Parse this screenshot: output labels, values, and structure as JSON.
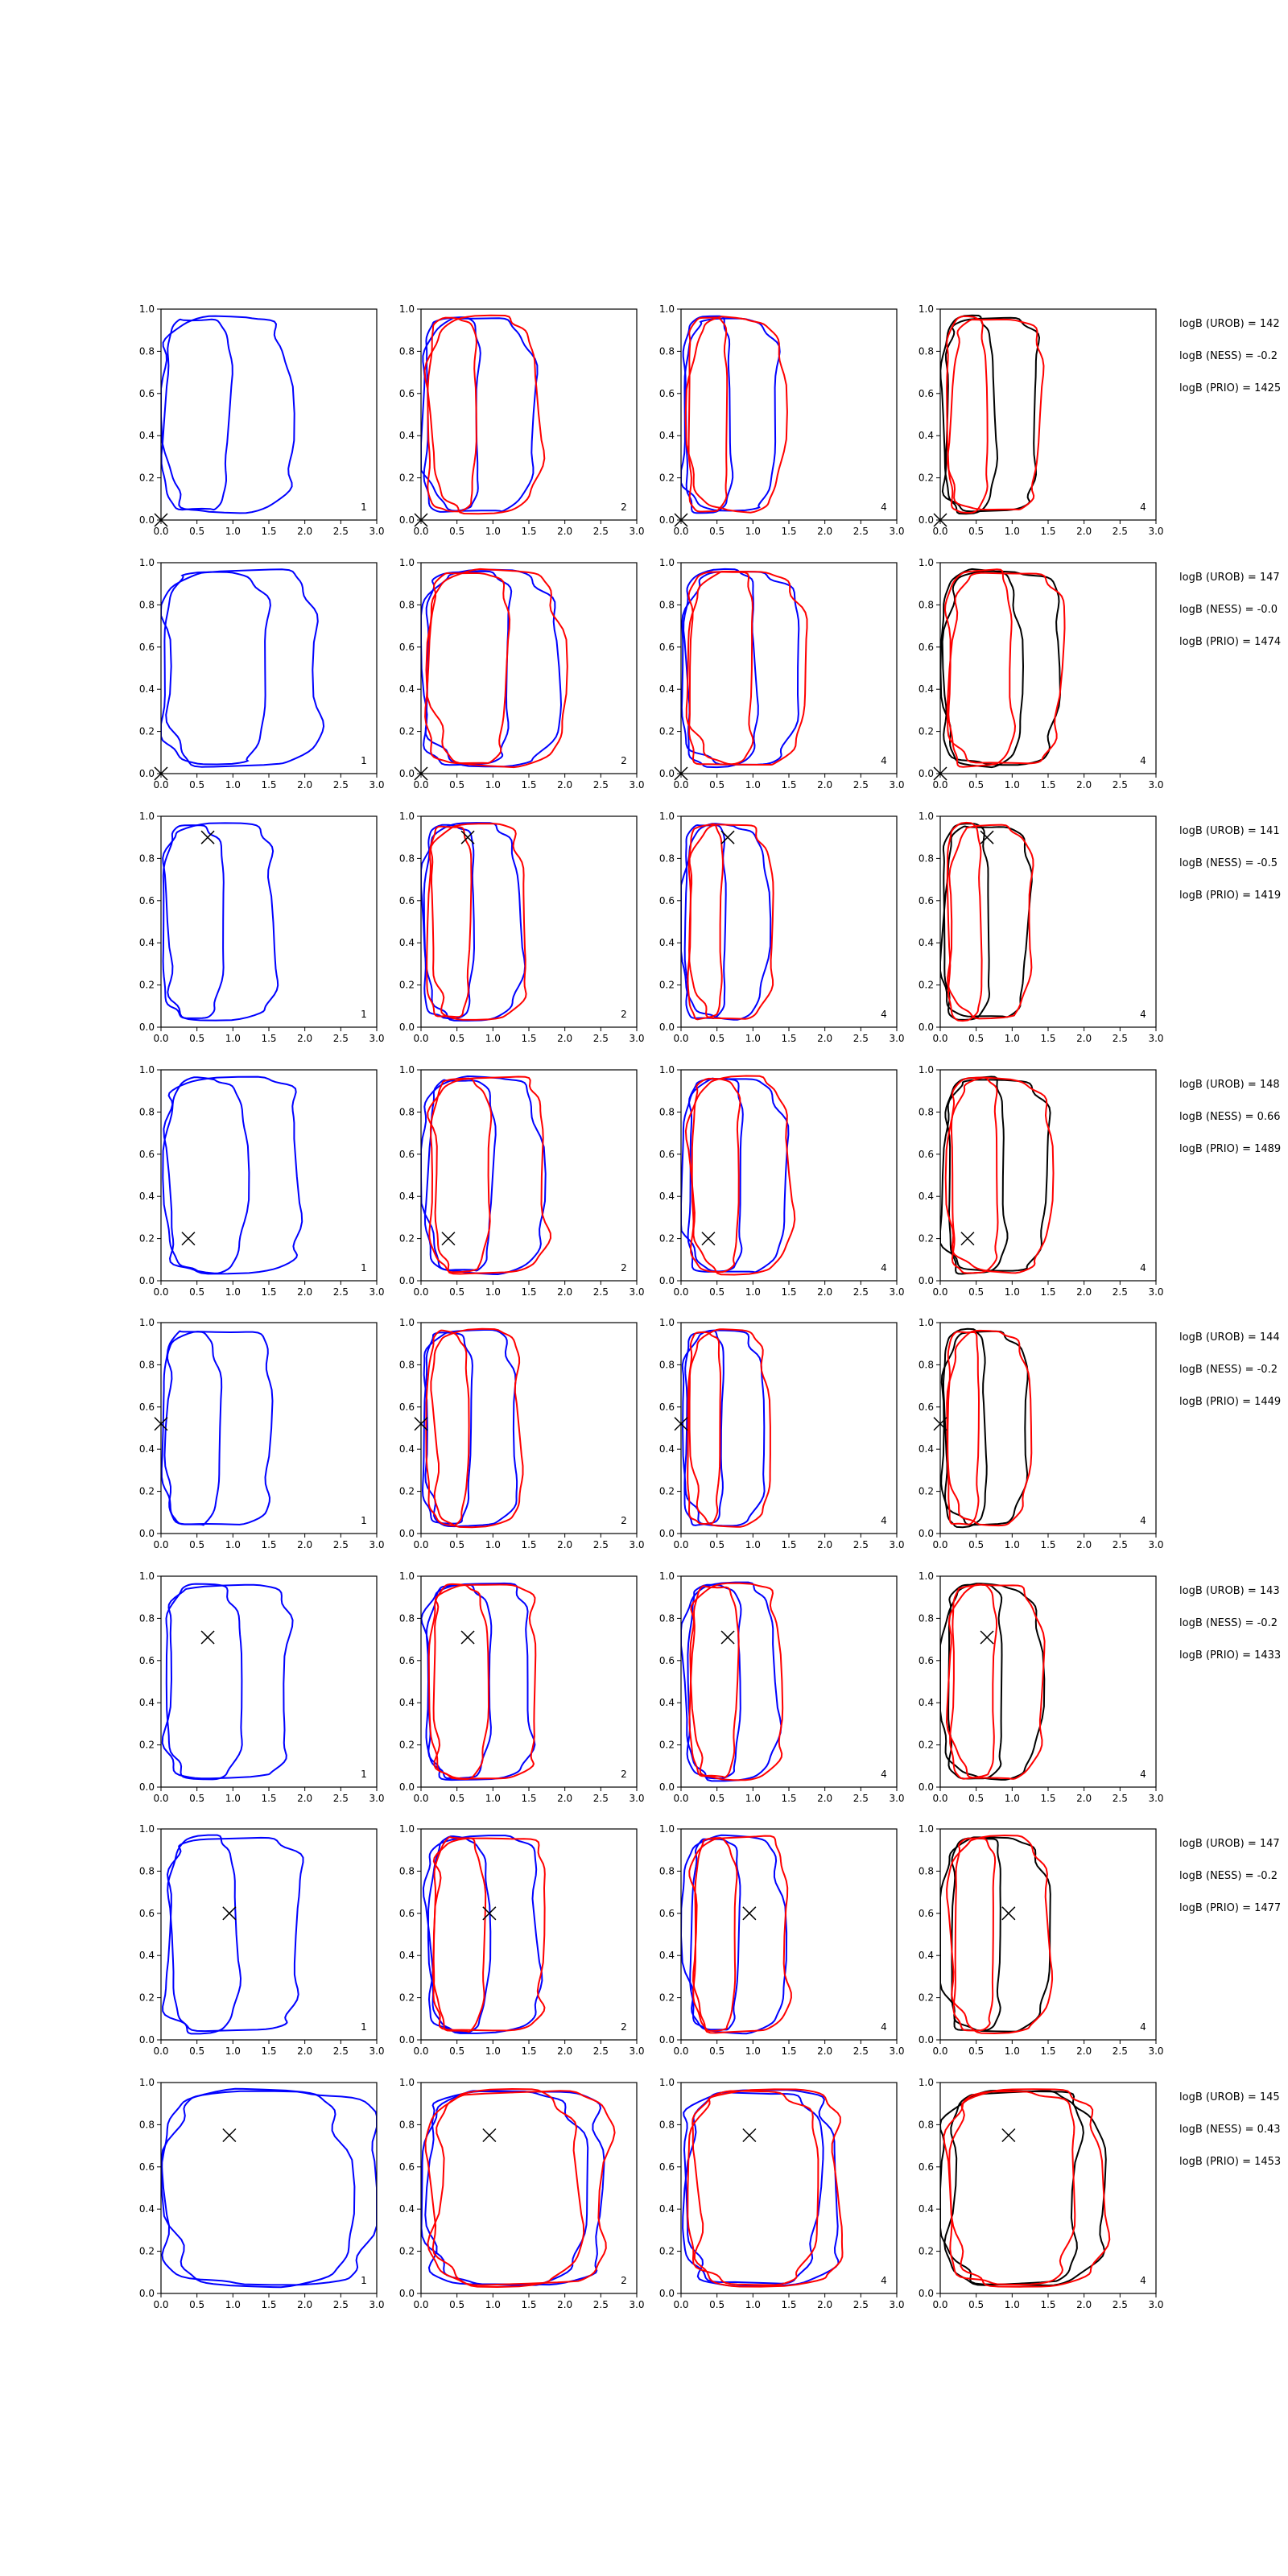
{
  "chart_data": {
    "type": "contour",
    "rows": 8,
    "cols": 4,
    "xlim": [
      0,
      3
    ],
    "ylim": [
      0,
      1
    ],
    "xticks": [
      "0.0",
      "0.5",
      "1.0",
      "1.5",
      "2.0",
      "2.5",
      "3.0"
    ],
    "yticks": [
      "0.0",
      "0.2",
      "0.4",
      "0.6",
      "0.8",
      "1.0"
    ],
    "panel_labels": [
      "1",
      "2",
      "4",
      "4"
    ],
    "colors": {
      "blue": "#0000ff",
      "red": "#ff0000",
      "black": "#000000"
    },
    "series_by_column": [
      [
        "blue"
      ],
      [
        "blue",
        "red"
      ],
      [
        "blue",
        "red"
      ],
      [
        "black",
        "red"
      ]
    ],
    "rows_data": [
      {
        "marker": [
          0.0,
          0.0
        ],
        "text": [
          "logB (UROB) = 142",
          "logB (NESS) = -0.2",
          "logB (PRIO) = 1425"
        ],
        "contours": {
          "blue": [
            [
              0.05,
              0.95,
              0.2,
              0.0
            ],
            [
              0.05,
              1.8,
              0.2,
              0.0
            ]
          ]
        }
      },
      {
        "marker": [
          0.0,
          0.0
        ],
        "text": [
          "logB (UROB) = 147",
          "logB (NESS) = -0.0",
          "logB (PRIO) = 1474"
        ],
        "contours": {
          "blue": [
            [
              0.05,
              1.45,
              0.1,
              0.0
            ],
            [
              0.05,
              2.2,
              0.0,
              0.0
            ]
          ]
        }
      },
      {
        "marker": [
          0.65,
          0.9
        ],
        "text": [
          "logB (UROB) = 141",
          "logB (NESS) = -0.5",
          "logB (PRIO) = 1419"
        ],
        "contours": {
          "blue": [
            [
              0.05,
              0.85,
              0.15,
              0.0
            ],
            [
              0.05,
              1.6,
              0.05,
              0.0
            ]
          ]
        }
      },
      {
        "marker": [
          0.38,
          0.2
        ],
        "text": [
          "logB (UROB) = 148",
          "logB (NESS) = 0.66",
          "logB (PRIO) = 1489"
        ],
        "contours": {
          "blue": [
            [
              0.1,
              1.15,
              0.1,
              0.0
            ],
            [
              0.05,
              1.95,
              0.0,
              0.0
            ]
          ]
        }
      },
      {
        "marker": [
          0.0,
          0.52
        ],
        "text": [
          "logB (UROB) = 144",
          "logB (NESS) = -0.2",
          "logB (PRIO) = 1449"
        ],
        "contours": {
          "blue": [
            [
              0.05,
              0.8,
              0.15,
              0.0
            ],
            [
              0.05,
              1.55,
              0.0,
              0.0
            ]
          ]
        }
      },
      {
        "marker": [
          0.65,
          0.71
        ],
        "text": [
          "logB (UROB) = 143",
          "logB (NESS) = -0.2",
          "logB (PRIO) = 1433"
        ],
        "contours": {
          "blue": [
            [
              0.1,
              1.1,
              0.15,
              0.0
            ],
            [
              0.05,
              1.8,
              0.05,
              0.0
            ]
          ]
        }
      },
      {
        "marker": [
          0.95,
          0.6
        ],
        "text": [
          "logB (UROB) = 147",
          "logB (NESS) = -0.2",
          "logB (PRIO) = 1477"
        ],
        "contours": {
          "blue": [
            [
              0.15,
              1.05,
              0.15,
              0.0
            ],
            [
              0.05,
              1.95,
              0.05,
              0.0
            ]
          ]
        }
      },
      {
        "marker": [
          0.95,
          0.75
        ],
        "text": [
          "logB (UROB) = 145",
          "logB (NESS) = 0.43",
          "logB (PRIO) = 1453"
        ],
        "contours": {
          "blue": [
            [
              0.1,
              2.6,
              0.2,
              0.0
            ],
            [
              0.05,
              3.0,
              0.05,
              0.0
            ]
          ]
        }
      }
    ]
  }
}
